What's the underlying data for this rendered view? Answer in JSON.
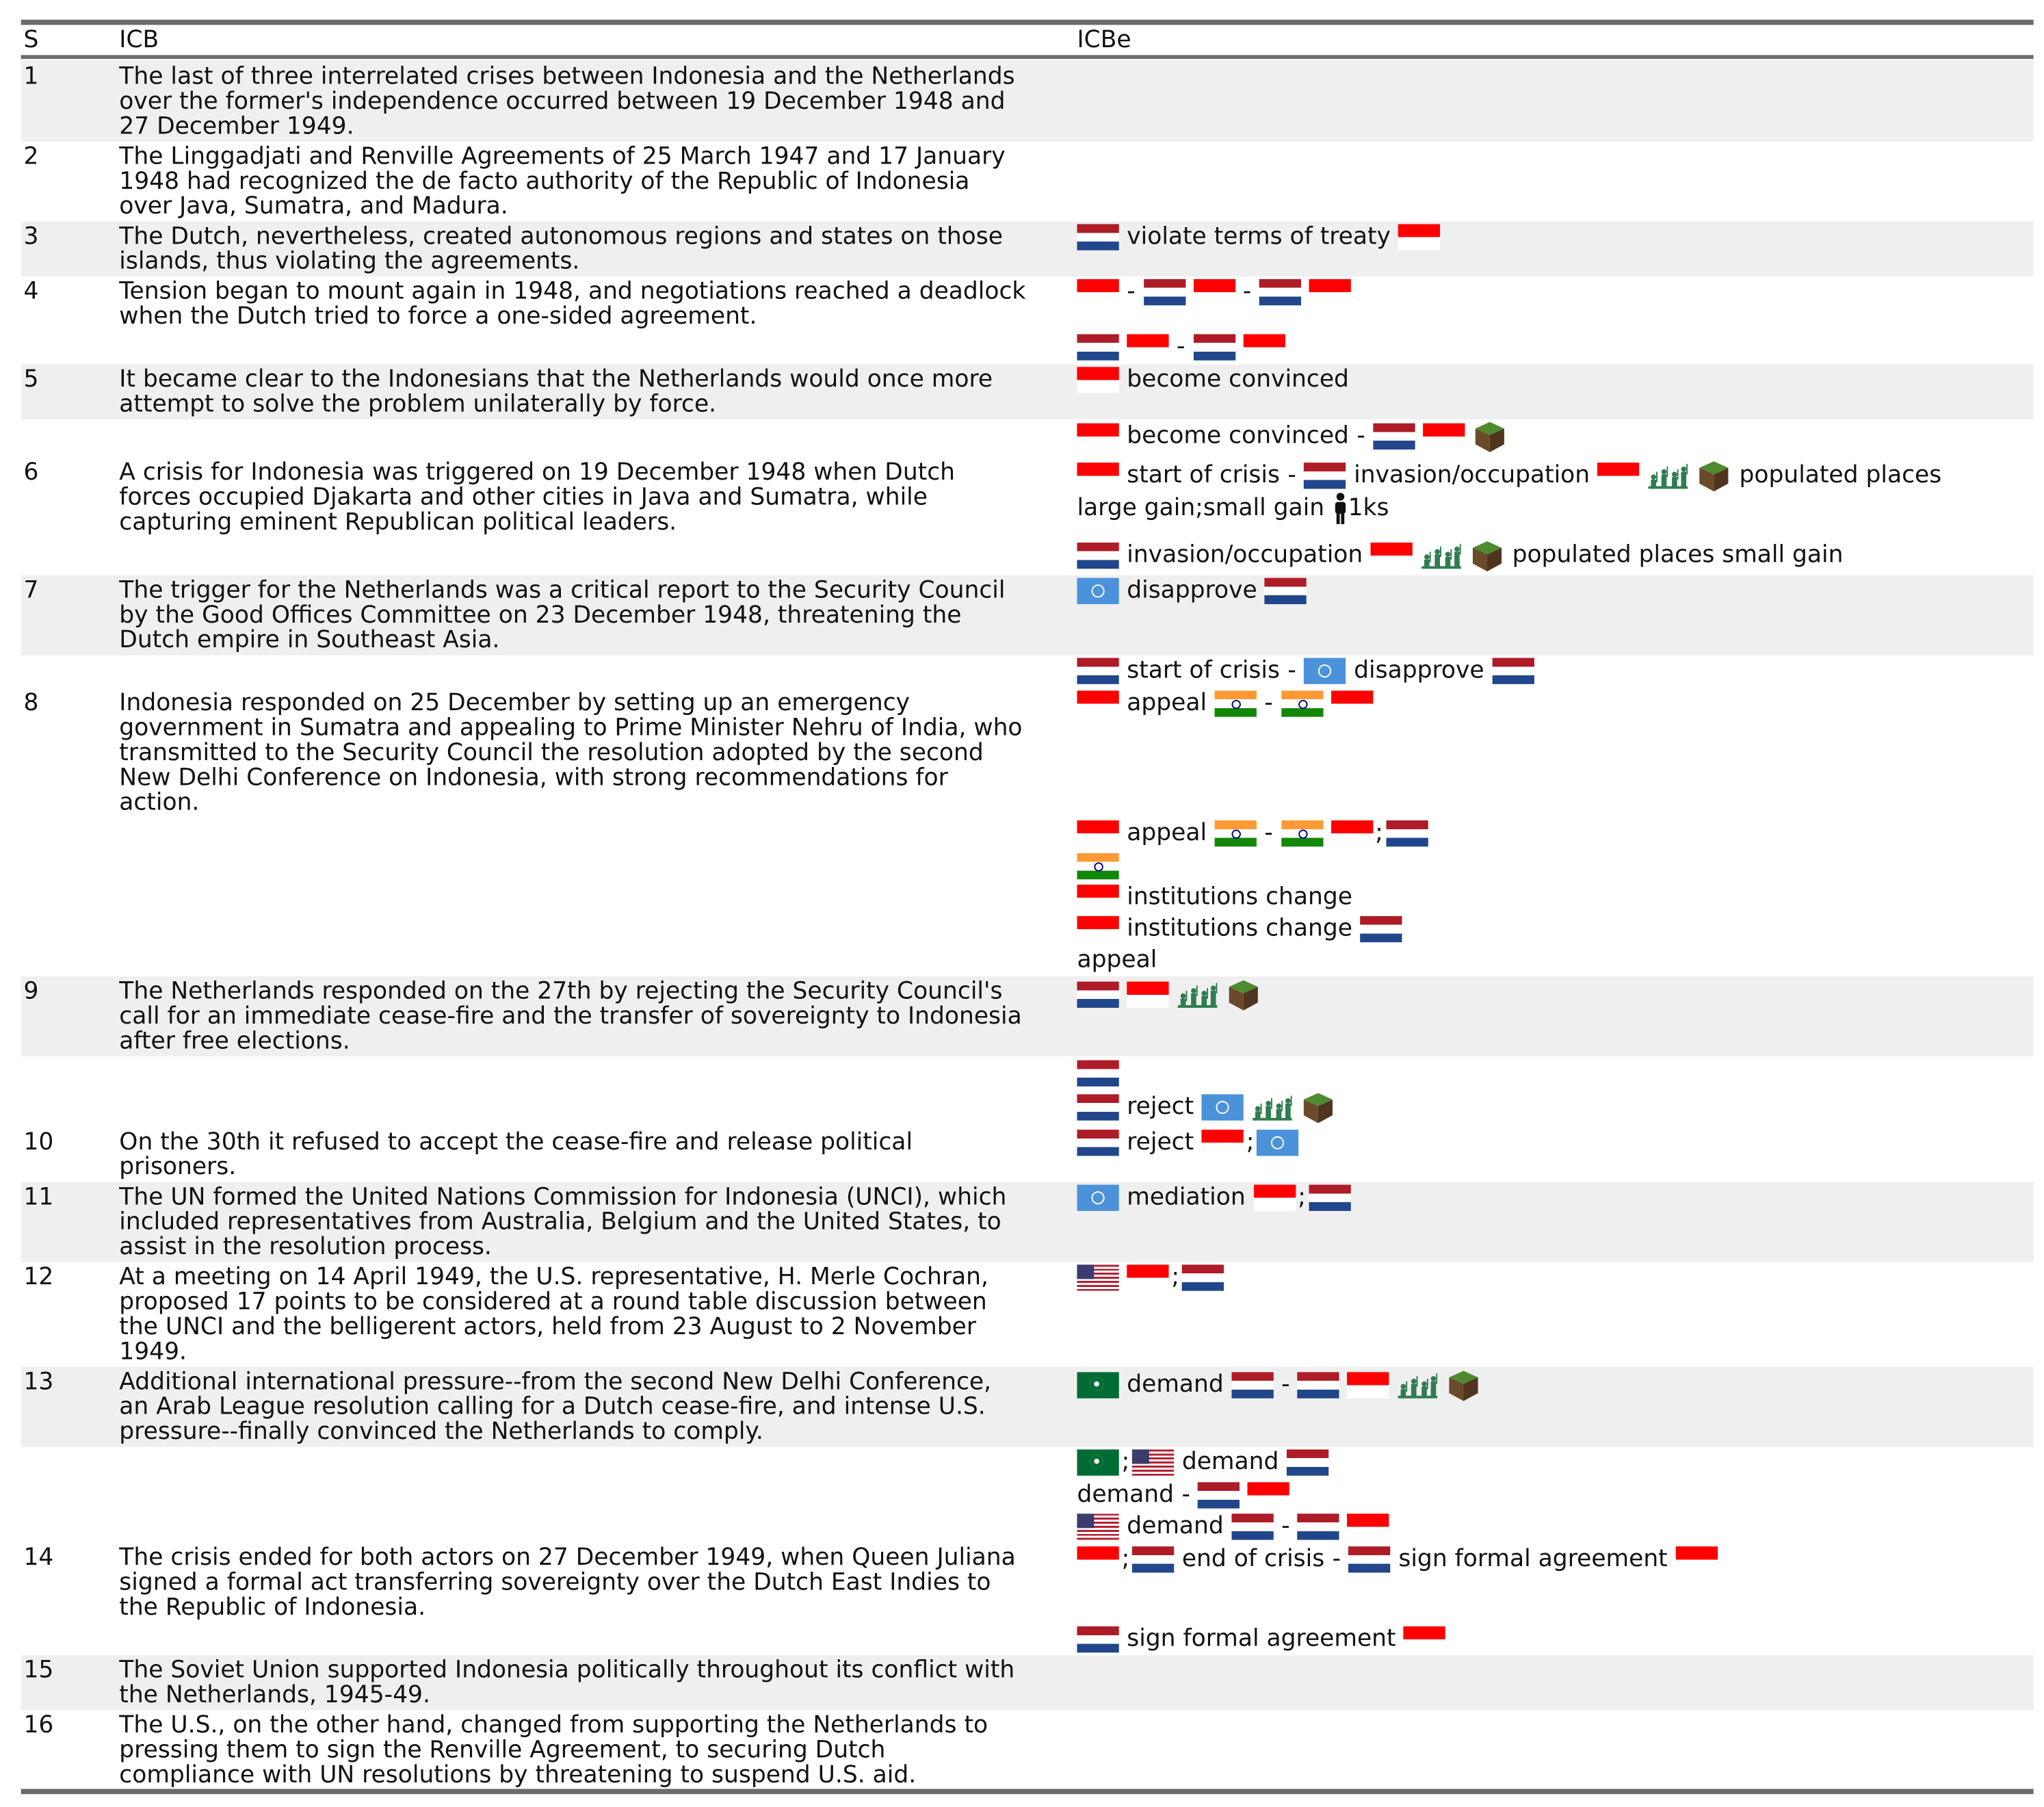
{
  "table": {
    "columns": [
      "S",
      "ICB",
      "ICBe"
    ],
    "rows": [
      {
        "s": "1",
        "icb": "The last of three interrelated crises between Indonesia and the Netherlands\nover the former's independence occurred between 19 December 1948 and\n27 December 1949."
      },
      {
        "s": "2",
        "icb": "The Linggadjati and Renville Agreements of 25 March 1947 and 17 January\n1948 had recognized the de facto authority of the Republic of Indonesia\nover Java, Sumatra, and Madura."
      },
      {
        "s": "3",
        "icb": "The Dutch, nevertheless, created autonomous regions and states on those\nislands, thus violating the agreements."
      },
      {
        "s": "4",
        "icb": "Tension began to mount again in 1948, and negotiations reached a deadlock\nwhen the Dutch tried to force a one-sided agreement."
      },
      {
        "s": "5",
        "icb": "It became clear to the Indonesians that the Netherlands would once more\nattempt to solve the problem unilaterally by force."
      },
      {
        "s": "6",
        "icb": "A crisis for Indonesia was triggered on 19 December 1948 when Dutch\nforces occupied Djakarta and other cities in Java and Sumatra, while\ncapturing eminent Republican political leaders."
      },
      {
        "s": "7",
        "icb": "The trigger for the Netherlands was a critical report to the Security Council\nby the Good Offices Committee on 23 December 1948, threatening the\nDutch empire in Southeast Asia."
      },
      {
        "s": "8",
        "icb": "Indonesia responded on 25 December by setting up an emergency\ngovernment in Sumatra and appealing to Prime Minister Nehru of India, who\ntransmitted to the Security Council the resolution adopted by the second\nNew Delhi Conference on Indonesia, with strong recommendations for\naction."
      },
      {
        "s": "9",
        "icb": "The Netherlands responded on the 27th by rejecting the Security Council's\ncall for an immediate cease-fire and the transfer of sovereignty to Indonesia\nafter free elections."
      },
      {
        "s": "10",
        "icb": "On the 30th it refused to accept the cease-fire and release political\nprisoners."
      },
      {
        "s": "11",
        "icb": "The UN formed the United Nations Commission for Indonesia (UNCI), which\nincluded representatives from Australia, Belgium and the United States, to\nassist in the resolution process."
      },
      {
        "s": "12",
        "icb": "At a meeting on 14 April 1949, the U.S. representative, H. Merle Cochran,\nproposed 17 points to be considered at a round table discussion between\nthe UNCI and the belligerent actors, held from 23 August to 2 November\n1949."
      },
      {
        "s": "13",
        "icb": "Additional international pressure--from the second New Delhi Conference,\nan Arab League resolution calling for a Dutch cease-fire, and intense U.S.\npressure--finally convinced the Netherlands to comply."
      },
      {
        "s": "14",
        "icb": "The crisis ended for both actors on 27 December 1949, when Queen Juliana\nsigned a formal act transferring sovereignty over the Dutch East Indies to\nthe Republic of Indonesia."
      },
      {
        "s": "15",
        "icb": "The Soviet Union supported Indonesia politically throughout its conflict with\nthe Netherlands, 1945-49."
      },
      {
        "s": "16",
        "icb": "The U.S., on the other hand, changed from supporting the Netherlands to\npressing them to sign the Renville Agreement, to securing Dutch\ncompliance with UN resolutions by threatening to suspend U.S. aid."
      }
    ]
  },
  "events": [
    {
      "tokens": [
        {
          "flag": "nl"
        },
        {
          "text": "violate terms of treaty"
        },
        {
          "flag": "id"
        }
      ]
    },
    {
      "tokens": [
        {
          "flag": "id"
        },
        {
          "sep": "-"
        },
        {
          "flag": "nl"
        },
        {
          "flag": "id"
        },
        {
          "sep": "-"
        },
        {
          "flag": "nl"
        },
        {
          "flag": "id"
        }
      ]
    },
    {
      "tokens": [
        {
          "flag": "nl"
        },
        {
          "flag": "id"
        },
        {
          "sep": "-"
        },
        {
          "flag": "nl"
        },
        {
          "flag": "id"
        }
      ]
    },
    {
      "tokens": [
        {
          "flag": "id"
        },
        {
          "text": "become convinced"
        }
      ]
    },
    {
      "tokens": [
        {
          "flag": "id"
        },
        {
          "text": "become convinced"
        },
        {
          "sep": "-"
        },
        {
          "flag": "nl"
        },
        {
          "flag": "id"
        },
        {
          "icon": "cube"
        }
      ]
    },
    {
      "tokens": [
        {
          "flag": "id"
        },
        {
          "text": "start of crisis"
        },
        {
          "sep": "-"
        },
        {
          "flag": "nl"
        },
        {
          "text": "invasion/occupation"
        },
        {
          "flag": "id"
        },
        {
          "icon": "soldiers"
        },
        {
          "icon": "cube"
        },
        {
          "text": "populated places"
        }
      ]
    },
    {
      "tokens": [
        {
          "text": "large gain;small gain"
        },
        {
          "icon": "person"
        },
        {
          "text": "1ks"
        }
      ]
    },
    {
      "tokens": [
        {
          "flag": "nl"
        },
        {
          "text": "invasion/occupation"
        },
        {
          "flag": "id"
        },
        {
          "icon": "soldiers"
        },
        {
          "icon": "cube"
        },
        {
          "text": "populated places small gain"
        }
      ]
    },
    {
      "tokens": [
        {
          "flag": "un"
        },
        {
          "text": "disapprove"
        },
        {
          "flag": "nl"
        }
      ]
    },
    {
      "tokens": [
        {
          "flag": "nl"
        },
        {
          "text": "start of crisis"
        },
        {
          "sep": "-"
        },
        {
          "flag": "un"
        },
        {
          "text": "disapprove"
        },
        {
          "flag": "nl"
        }
      ]
    },
    {
      "tokens": [
        {
          "flag": "id"
        },
        {
          "text": "appeal"
        },
        {
          "flag": "in"
        },
        {
          "sep": "-"
        },
        {
          "flag": "in"
        },
        {
          "flag": "id"
        }
      ]
    },
    {
      "tokens": [
        {
          "flag": "id"
        },
        {
          "text": "appeal"
        },
        {
          "flag": "in"
        },
        {
          "sep": "-"
        },
        {
          "flag": "in"
        },
        {
          "flag": "id"
        },
        {
          "semi": ";"
        },
        {
          "flag": "nl"
        }
      ]
    },
    {
      "tokens": [
        {
          "flag": "in"
        }
      ]
    },
    {
      "tokens": [
        {
          "flag": "id"
        },
        {
          "text": "institutions change"
        }
      ]
    },
    {
      "tokens": [
        {
          "flag": "id"
        },
        {
          "text": "institutions change"
        },
        {
          "flag": "nl"
        }
      ]
    },
    {
      "tokens": [
        {
          "text": "appeal"
        }
      ]
    },
    {
      "tokens": [
        {
          "flag": "nl"
        },
        {
          "flag": "id"
        },
        {
          "icon": "soldiers"
        },
        {
          "icon": "cube"
        }
      ]
    },
    {
      "tokens": [
        {
          "flag": "nl"
        }
      ]
    },
    {
      "tokens": [
        {
          "flag": "nl"
        },
        {
          "text": "reject"
        },
        {
          "flag": "un"
        },
        {
          "icon": "soldiers"
        },
        {
          "icon": "cube"
        }
      ]
    },
    {
      "tokens": [
        {
          "flag": "nl"
        },
        {
          "text": "reject"
        },
        {
          "flag": "id"
        },
        {
          "semi": ";"
        },
        {
          "flag": "un"
        }
      ]
    },
    {
      "tokens": [
        {
          "flag": "un"
        },
        {
          "text": "mediation"
        },
        {
          "flag": "id"
        },
        {
          "semi": ";"
        },
        {
          "flag": "nl"
        }
      ]
    },
    {
      "tokens": [
        {
          "flag": "us"
        },
        {
          "flag": "id"
        },
        {
          "semi": ";"
        },
        {
          "flag": "nl"
        }
      ]
    },
    {
      "tokens": [
        {
          "flag": "al"
        },
        {
          "text": "demand"
        },
        {
          "flag": "nl"
        },
        {
          "sep": "-"
        },
        {
          "flag": "nl"
        },
        {
          "flag": "id"
        },
        {
          "icon": "soldiers"
        },
        {
          "icon": "cube"
        }
      ]
    },
    {
      "tokens": [
        {
          "flag": "al"
        },
        {
          "semi": ";"
        },
        {
          "flag": "us"
        },
        {
          "text": "demand"
        },
        {
          "flag": "nl"
        }
      ]
    },
    {
      "tokens": [
        {
          "text": "demand"
        },
        {
          "sep": "-"
        },
        {
          "flag": "nl"
        },
        {
          "flag": "id"
        }
      ]
    },
    {
      "tokens": [
        {
          "flag": "us"
        },
        {
          "text": "demand"
        },
        {
          "flag": "nl"
        },
        {
          "sep": "-"
        },
        {
          "flag": "nl"
        },
        {
          "flag": "id"
        }
      ]
    },
    {
      "tokens": [
        {
          "flag": "id"
        },
        {
          "semi": ";"
        },
        {
          "flag": "nl"
        },
        {
          "text": "end of crisis"
        },
        {
          "sep": "-"
        },
        {
          "flag": "nl"
        },
        {
          "text": "sign formal agreement"
        },
        {
          "flag": "id"
        }
      ]
    },
    {
      "tokens": [
        {
          "flag": "nl"
        },
        {
          "text": "sign formal agreement"
        },
        {
          "flag": "id"
        }
      ]
    }
  ],
  "colors": {
    "rule": "#6b6b6b",
    "band": "#efefef",
    "flag_indonesia": "#ff0000",
    "flag_netherlands": [
      "#ae1c28",
      "#ffffff",
      "#21468b"
    ],
    "flag_un": "#4b92db"
  },
  "icon_names": {
    "id": "indonesia-flag-icon",
    "nl": "netherlands-flag-icon",
    "in": "india-flag-icon",
    "un": "un-flag-icon",
    "us": "usa-flag-icon",
    "al": "arab-league-flag-icon",
    "soldiers": "military-forces-icon",
    "cube": "territory-cube-icon",
    "person": "person-icon"
  }
}
